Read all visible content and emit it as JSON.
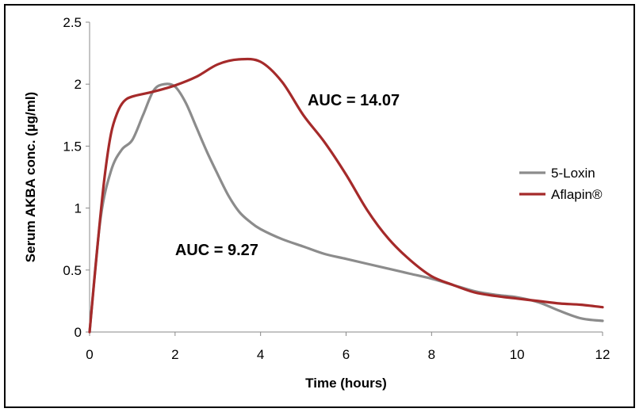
{
  "chart_data": {
    "type": "line",
    "title": "",
    "xlabel": "Time (hours)",
    "ylabel": "Serum AKBA conc. (µg/ml)",
    "xlim": [
      0,
      12
    ],
    "ylim": [
      0,
      2.5
    ],
    "xticks": [
      0,
      2,
      4,
      6,
      8,
      10,
      12
    ],
    "yticks": [
      0,
      0.5,
      1,
      1.5,
      2,
      2.5
    ],
    "ytick_labels": [
      "0",
      "0.5",
      "1",
      "1.5",
      "2",
      "2.5"
    ],
    "grid": false,
    "legend_position": "right",
    "series": [
      {
        "name": "5-Loxin",
        "color": "#8c8c8c",
        "x": [
          0,
          0.25,
          0.5,
          0.75,
          1,
          1.25,
          1.5,
          1.75,
          2,
          2.25,
          2.5,
          2.75,
          3,
          3.25,
          3.5,
          3.75,
          4,
          4.5,
          5,
          5.5,
          6,
          6.5,
          7,
          7.5,
          8,
          8.5,
          9,
          9.5,
          10,
          10.5,
          11,
          11.5,
          12
        ],
        "y": [
          0,
          0.9,
          1.3,
          1.47,
          1.55,
          1.75,
          1.95,
          2.0,
          1.98,
          1.85,
          1.65,
          1.45,
          1.27,
          1.1,
          0.97,
          0.89,
          0.83,
          0.75,
          0.69,
          0.63,
          0.59,
          0.55,
          0.51,
          0.47,
          0.43,
          0.38,
          0.33,
          0.3,
          0.28,
          0.24,
          0.17,
          0.11,
          0.09
        ]
      },
      {
        "name": "Aflapin®",
        "color": "#a52a2a",
        "x": [
          0,
          0.2,
          0.35,
          0.5,
          0.65,
          0.8,
          1,
          1.5,
          2,
          2.5,
          3,
          3.5,
          4,
          4.5,
          5,
          5.5,
          6,
          6.5,
          7,
          7.5,
          8,
          8.5,
          9,
          9.5,
          10,
          10.5,
          11,
          11.5,
          12
        ],
        "y": [
          0,
          0.75,
          1.25,
          1.6,
          1.77,
          1.86,
          1.9,
          1.94,
          1.99,
          2.06,
          2.16,
          2.2,
          2.18,
          2.02,
          1.75,
          1.53,
          1.27,
          0.98,
          0.75,
          0.58,
          0.45,
          0.38,
          0.32,
          0.29,
          0.27,
          0.25,
          0.23,
          0.22,
          0.2
        ]
      }
    ],
    "annotations": [
      {
        "text": "AUC = 14.07",
        "x": 5.1,
        "y": 1.83
      },
      {
        "text": "AUC = 9.27",
        "x": 2.0,
        "y": 0.62
      }
    ]
  }
}
